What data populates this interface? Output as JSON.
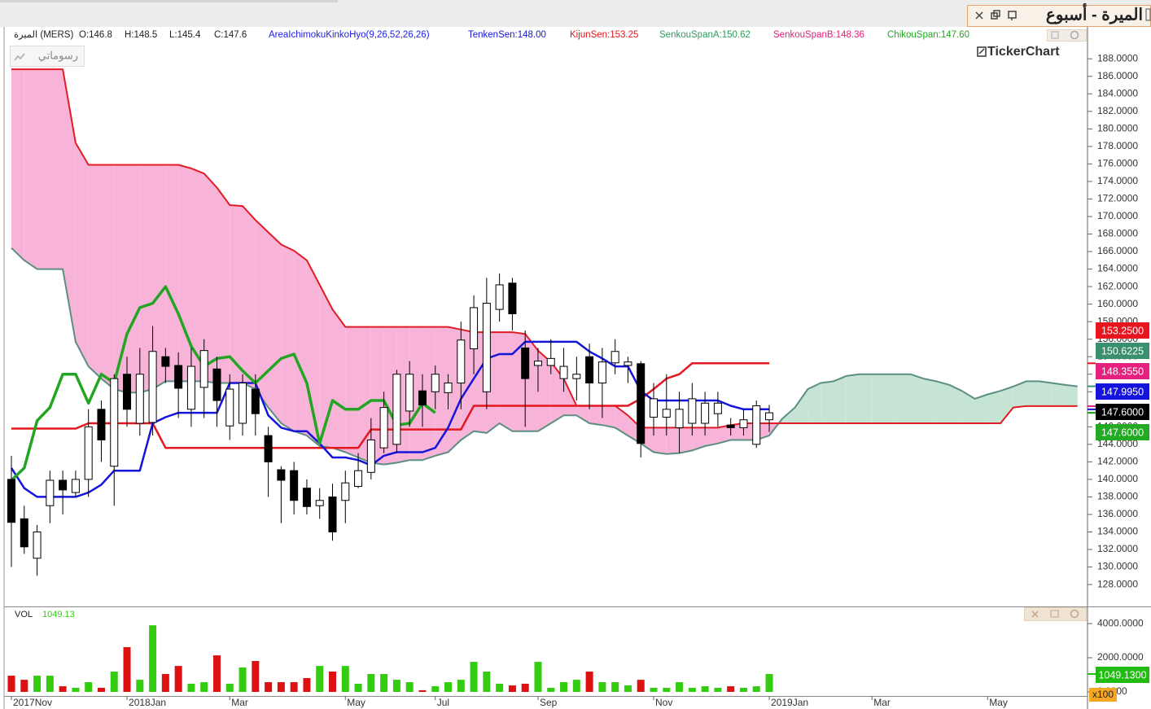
{
  "window": {
    "title": "الميرة - أسبوع"
  },
  "info": {
    "symbol": "الميرة (MERS)",
    "ohlc": [
      "O:146.8",
      "H:148.5",
      "L:145.4",
      "C:147.6"
    ],
    "indicator": "AreaIchimokuKinkoHyo(9,26,52,26,26)"
  },
  "drawings_button": "رسوماتي",
  "logo": "TickerChart",
  "chart_data": {
    "type": "candlestick",
    "categories": [
      "2017Nov",
      null,
      null,
      null,
      null,
      null,
      null,
      null,
      null,
      "2018Jan",
      null,
      null,
      null,
      null,
      null,
      null,
      null,
      "Mar",
      null,
      null,
      null,
      null,
      null,
      null,
      null,
      null,
      "May",
      null,
      null,
      null,
      null,
      null,
      null,
      "Jul",
      null,
      null,
      null,
      null,
      null,
      null,
      null,
      "Sep",
      null,
      null,
      null,
      null,
      null,
      null,
      null,
      null,
      "Nov",
      null,
      null,
      null,
      null,
      null,
      null,
      null,
      null,
      "2019Jan",
      null,
      null,
      null,
      null,
      null,
      null,
      null,
      "Mar",
      null,
      null,
      null,
      null,
      null,
      null,
      null,
      null,
      "May",
      null,
      null,
      null,
      null,
      null,
      null,
      null
    ],
    "open": [
      140,
      135.5,
      131,
      137,
      139.9,
      138.5,
      140,
      148,
      141.5,
      152,
      146.4,
      146.5,
      154,
      153,
      148,
      150.5,
      152.6,
      146.1,
      146.4,
      150.3,
      145,
      141.1,
      141,
      139,
      137,
      138,
      137.6,
      139.2,
      140.8,
      143.6,
      144,
      147.8,
      150.1,
      150,
      149.9,
      151,
      154.9,
      150,
      159.4,
      162.4,
      155,
      153,
      153,
      151.5,
      151.5,
      154,
      151,
      153.3,
      153,
      153.2,
      147.1,
      147.1,
      145.9,
      146.4,
      146.4,
      147.5,
      146.2,
      145.9,
      144,
      146.8,
      null,
      null,
      null,
      null,
      null,
      null,
      null,
      null,
      null,
      null,
      null,
      null,
      null,
      null,
      null,
      null,
      null,
      null,
      null,
      null,
      null,
      null,
      null,
      null
    ],
    "high": [
      142.7,
      137,
      134.8,
      141,
      141,
      141,
      148,
      149,
      152,
      154,
      155,
      157.5,
      155,
      154.5,
      155,
      156,
      154,
      152,
      152,
      152,
      146,
      141.5,
      142,
      140,
      139,
      139.5,
      141,
      143,
      147,
      150,
      152.5,
      153.5,
      152,
      153,
      152,
      158,
      161,
      163,
      163.5,
      163,
      157,
      155,
      156,
      155,
      154,
      155.5,
      155,
      156,
      154,
      153.5,
      151,
      152,
      150,
      151,
      150,
      150,
      147,
      148,
      149,
      148.5,
      null,
      null,
      null,
      null,
      null,
      null,
      null,
      null,
      null,
      null,
      null,
      null,
      null,
      null,
      null,
      null,
      null,
      null,
      null,
      null,
      null,
      null,
      null,
      null
    ],
    "low": [
      130,
      131.5,
      129,
      135,
      136,
      138,
      138,
      142,
      137,
      146,
      145,
      145,
      151,
      147,
      146,
      147,
      146,
      144.5,
      145,
      145,
      138,
      135,
      136,
      136,
      135.5,
      133,
      135,
      139,
      140,
      143,
      143,
      146,
      146,
      148,
      148,
      148,
      152,
      148,
      158,
      157,
      146,
      150,
      152,
      150,
      149,
      148,
      147,
      152,
      151,
      142.5,
      145,
      145,
      143,
      145,
      145,
      146,
      145,
      145,
      143.6,
      145.4,
      null,
      null,
      null,
      null,
      null,
      null,
      null,
      null,
      null,
      null,
      null,
      null,
      null,
      null,
      null,
      null,
      null,
      null,
      null,
      null,
      null,
      null,
      null,
      null
    ],
    "close": [
      135.1,
      132.3,
      134,
      139.9,
      138.8,
      140,
      146,
      144.5,
      151.5,
      148,
      152,
      154.6,
      152.9,
      150.4,
      152.9,
      154.7,
      149,
      150.3,
      151,
      147.5,
      142,
      139.9,
      137.6,
      136.9,
      137.6,
      134,
      139.6,
      141,
      144.5,
      148.2,
      152,
      152,
      148.5,
      152,
      151,
      155.9,
      159.6,
      160.1,
      162.2,
      158.9,
      151.5,
      153.5,
      153.8,
      152.9,
      152,
      151,
      153.4,
      154.6,
      153.4,
      144.1,
      149.2,
      148,
      148,
      149.2,
      148.7,
      148.7,
      145.9,
      146.8,
      148.4,
      147.6,
      null,
      null,
      null,
      null,
      null,
      null,
      null,
      null,
      null,
      null,
      null,
      null,
      null,
      null,
      null,
      null,
      null,
      null,
      null,
      null,
      null,
      null,
      null,
      null
    ],
    "up_color": "#ffffff",
    "down_color": "#000000",
    "series": [
      {
        "name": "TenkenSen:148.00",
        "color": "#1414dc",
        "label_color": "#1414dc",
        "width": 2.5,
        "values": [
          141.3,
          139,
          138,
          138,
          138,
          138,
          138.5,
          139.4,
          141,
          141,
          141,
          146.4,
          147.1,
          147.6,
          147.6,
          147.6,
          147.6,
          151,
          151,
          151,
          147.3,
          145.9,
          145.5,
          145.5,
          144.1,
          142.5,
          142.5,
          142.2,
          141.6,
          142.7,
          143.1,
          143.1,
          143.1,
          143.6,
          145.9,
          149.2,
          151.5,
          153.8,
          154.3,
          154.3,
          155.7,
          155.7,
          155.7,
          155.7,
          155.7,
          154.6,
          153.8,
          152.9,
          152.9,
          150.1,
          149,
          149,
          149,
          149,
          149,
          149,
          148.4,
          148,
          148,
          148,
          null,
          null,
          null,
          null,
          null,
          null,
          null,
          null,
          null,
          null,
          null,
          null,
          null,
          null,
          null,
          null,
          null,
          null,
          null,
          null,
          null,
          null,
          null,
          null
        ]
      },
      {
        "name": "KijunSen:153.25",
        "color": "#e4161e",
        "label_color": "#e4161e",
        "width": 2.5,
        "values": [
          145.8,
          145.8,
          145.8,
          145.8,
          145.8,
          145.8,
          146.4,
          146.4,
          146.4,
          146.4,
          146.4,
          146.4,
          143.6,
          143.6,
          143.6,
          143.6,
          143.6,
          143.6,
          143.6,
          143.6,
          143.6,
          143.6,
          143.6,
          143.6,
          143.6,
          143.6,
          143.6,
          143.6,
          145.7,
          145.7,
          145.7,
          145.7,
          145.7,
          145.7,
          145.7,
          145.7,
          148.4,
          148.4,
          148.4,
          148.4,
          148.4,
          148.4,
          148.4,
          148.4,
          148.4,
          148.4,
          148.4,
          148.4,
          148.4,
          149.2,
          150.3,
          151.5,
          152,
          153.25,
          153.25,
          153.25,
          153.25,
          153.25,
          153.25,
          153.25,
          null,
          null,
          null,
          null,
          null,
          null,
          null,
          null,
          null,
          null,
          null,
          null,
          null,
          null,
          null,
          null,
          null,
          null,
          null,
          null,
          null,
          null,
          null,
          null
        ]
      },
      {
        "name": "SenkouSpanA:150.62",
        "color": "#5b8f82",
        "label_color": "#2f9a5a",
        "width": 2,
        "values": [
          166.4,
          165,
          164,
          164,
          164,
          155.7,
          152.9,
          151.5,
          150.3,
          149.9,
          149.9,
          150.3,
          151.2,
          151.2,
          151.2,
          151.2,
          151,
          151,
          151,
          150.3,
          148.2,
          146.4,
          145.5,
          145,
          143.8,
          143.6,
          143.1,
          142.5,
          141.9,
          141.7,
          141.9,
          142.2,
          142.2,
          142.7,
          143.1,
          144.5,
          145.5,
          145.3,
          146.4,
          145.5,
          145.5,
          145.5,
          146.4,
          147.3,
          147.3,
          146.4,
          146.2,
          145.9,
          145,
          144.1,
          143.1,
          142.9,
          143,
          143.3,
          143.8,
          144.1,
          144.5,
          144.5,
          144.5,
          145,
          146.9,
          148.2,
          150.3,
          151,
          151.2,
          151.8,
          152,
          152,
          152,
          152,
          152,
          151.5,
          151.2,
          150.8,
          150.1,
          149.2,
          149.7,
          150.1,
          150.6,
          151.2,
          151.2,
          151,
          150.8,
          150.62
        ]
      },
      {
        "name": "SenkouSpanB:148.36",
        "color": "#e21c24",
        "label_color": "#e0207a",
        "width": 2,
        "values": [
          186.8,
          186.8,
          186.8,
          186.8,
          186.8,
          178.4,
          175.9,
          175.9,
          175.9,
          175.9,
          175.9,
          175.9,
          175.9,
          175.9,
          175.5,
          174.9,
          173.3,
          171.3,
          171.2,
          169.6,
          168.2,
          166.8,
          166.1,
          165,
          162.2,
          159.4,
          157.4,
          157.4,
          157.4,
          157.4,
          157.4,
          157.4,
          157.4,
          157.4,
          157.4,
          157.1,
          156.8,
          156.8,
          156.8,
          156.8,
          156.6,
          154.7,
          153.4,
          151.5,
          148.4,
          148.4,
          148.4,
          148.4,
          147.3,
          145.9,
          145.9,
          145.9,
          145.9,
          145.9,
          145.9,
          145.9,
          146.2,
          146.4,
          146.4,
          146.4,
          146.4,
          146.4,
          146.4,
          146.4,
          146.4,
          146.4,
          146.4,
          146.4,
          146.4,
          146.4,
          146.4,
          146.4,
          146.4,
          146.4,
          146.4,
          146.4,
          146.4,
          146.4,
          148.2,
          148.36,
          148.36,
          148.36,
          148.36,
          148.36
        ]
      },
      {
        "name": "ChikouSpan:147.60",
        "color": "#22a622",
        "label_color": "#22a622",
        "width": 3.5,
        "values": [
          139.9,
          141.3,
          146.7,
          148.2,
          152,
          152,
          148.7,
          152,
          151,
          156.6,
          159.6,
          160.1,
          162,
          158.9,
          155.2,
          152.9,
          153.8,
          154,
          152.4,
          151,
          152.4,
          153.8,
          154.3,
          151,
          144.1,
          149,
          148,
          148,
          149,
          149,
          146.2,
          146.4,
          148.7,
          147.6,
          null,
          null,
          null,
          null,
          null,
          null,
          null,
          null,
          null,
          null,
          null,
          null,
          null,
          null,
          null,
          null,
          null,
          null,
          null,
          null,
          null,
          null,
          null,
          null,
          null,
          null,
          null,
          null,
          null,
          null,
          null,
          null,
          null,
          null,
          null,
          null,
          null,
          null,
          null,
          null,
          null,
          null,
          null,
          null,
          null,
          null,
          null,
          null,
          null,
          null
        ]
      },
      {
        "name": "VOL",
        "axis": "y2",
        "up_color": "#33cc11",
        "down_color": "#dd1111",
        "legend_value": "1049.13",
        "values": [
          950,
          710,
          950,
          950,
          330,
          240,
          570,
          240,
          1190,
          2620,
          710,
          3900,
          1050,
          1520,
          480,
          570,
          2140,
          480,
          1430,
          1810,
          570,
          570,
          570,
          810,
          1520,
          1190,
          1520,
          480,
          1050,
          1050,
          710,
          570,
          100,
          330,
          570,
          710,
          1760,
          1190,
          480,
          380,
          480,
          1760,
          240,
          570,
          710,
          1190,
          570,
          570,
          380,
          710,
          240,
          240,
          570,
          240,
          330,
          240,
          330,
          240,
          330,
          1049.13,
          null,
          null,
          null,
          null,
          null,
          null,
          null,
          null,
          null,
          null,
          null,
          null,
          null,
          null,
          null,
          null,
          null,
          null,
          null,
          null,
          null,
          null,
          null,
          null
        ]
      }
    ],
    "cloud_colors": {
      "bear": "#f8b4d8",
      "bull": "#c6e4d4"
    },
    "ylim": [
      125.5,
      189.6
    ],
    "yticks": [
      {
        "value": 128,
        "label": "128.0000"
      },
      {
        "value": 130,
        "label": "130.0000"
      },
      {
        "value": 132,
        "label": "132.0000"
      },
      {
        "value": 134,
        "label": "134.0000"
      },
      {
        "value": 136,
        "label": "136.0000"
      },
      {
        "value": 138,
        "label": "138.0000"
      },
      {
        "value": 140,
        "label": "140.0000"
      },
      {
        "value": 142,
        "label": "142.0000"
      },
      {
        "value": 144,
        "label": "144.0000"
      },
      {
        "value": 146,
        "label": "146.0000"
      },
      {
        "value": 148,
        "label": "148.0000"
      },
      {
        "value": 150,
        "label": "150.0000"
      },
      {
        "value": 152,
        "label": "152.0000"
      },
      {
        "value": 154,
        "label": "154.0000"
      },
      {
        "value": 156,
        "label": "156.0000"
      },
      {
        "value": 158,
        "label": "158.0000"
      },
      {
        "value": 160,
        "label": "160.0000"
      },
      {
        "value": 162,
        "label": "162.0000"
      },
      {
        "value": 164,
        "label": "164.0000"
      },
      {
        "value": 166,
        "label": "166.0000"
      },
      {
        "value": 168,
        "label": "168.0000"
      },
      {
        "value": 170,
        "label": "170.0000"
      },
      {
        "value": 172,
        "label": "172.0000"
      },
      {
        "value": 174,
        "label": "174.0000"
      },
      {
        "value": 176,
        "label": "176.0000"
      },
      {
        "value": 178,
        "label": "178.0000"
      },
      {
        "value": 180,
        "label": "180.0000"
      },
      {
        "value": 182,
        "label": "182.0000"
      },
      {
        "value": 184,
        "label": "184.0000"
      },
      {
        "value": 186,
        "label": "186.0000"
      },
      {
        "value": 188,
        "label": "188.0000"
      }
    ],
    "price_tags": [
      {
        "value": 153.25,
        "label": "153.2500",
        "color": "#e8141e"
      },
      {
        "value": 150.6225,
        "label": "150.6225",
        "color": "#3a8f6e"
      },
      {
        "value": 148.355,
        "label": "148.3550",
        "color": "#e6207e"
      },
      {
        "value": 147.995,
        "label": "147.9950",
        "color": "#1414dc"
      },
      {
        "value": 147.6,
        "label": "147.6000",
        "color": "#000000"
      },
      {
        "value": 147.6,
        "label": "147.6000",
        "color": "#22aa22"
      }
    ],
    "y2lim": [
      0,
      4290
    ],
    "y2ticks": [
      {
        "value": 0,
        "label": "0.0000"
      },
      {
        "value": 2000,
        "label": "2000.0000"
      },
      {
        "value": 4000,
        "label": "4000.0000"
      }
    ],
    "volume_tag": {
      "value": 1049.13,
      "label": "1049.1300",
      "color": "#22bb11"
    },
    "volume_multiplier": "x100"
  }
}
